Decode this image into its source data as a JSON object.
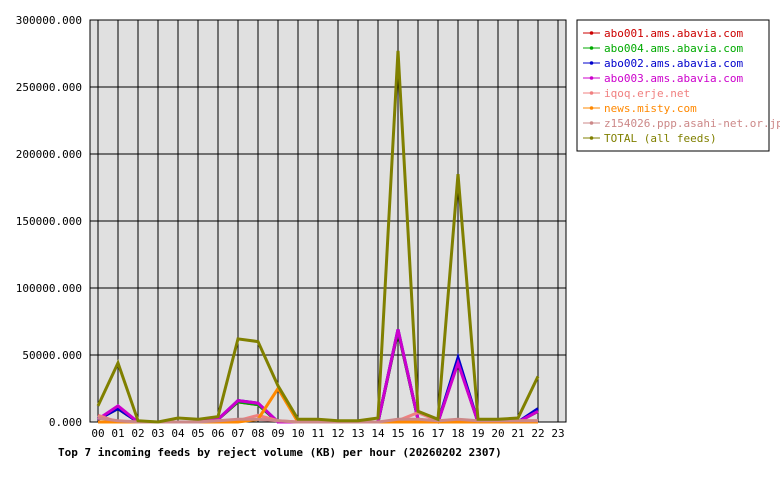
{
  "chart_data": {
    "type": "line",
    "title": "Top 7 incoming feeds by reject volume (KB) per hour (20260202 2307)",
    "xlabel": "",
    "ylabel": "",
    "x": [
      "00",
      "01",
      "02",
      "03",
      "04",
      "05",
      "06",
      "07",
      "08",
      "09",
      "10",
      "11",
      "12",
      "13",
      "14",
      "15",
      "16",
      "17",
      "18",
      "19",
      "20",
      "21",
      "22",
      "23"
    ],
    "y_ticks": [
      "0.000",
      "50000.000",
      "100000.000",
      "150000.000",
      "200000.000",
      "250000.000",
      "300000.000"
    ],
    "ylim": [
      0,
      300000
    ],
    "grid": true,
    "legend_position": "right",
    "series": [
      {
        "name": "abo001.ams.abavia.com",
        "color": "#cc0000",
        "values": [
          2000,
          10000,
          0,
          0,
          0,
          0,
          2000,
          15000,
          13000,
          0,
          0,
          0,
          0,
          0,
          0,
          68000,
          2000,
          0,
          45000,
          0,
          0,
          0,
          8000,
          null
        ]
      },
      {
        "name": "abo004.ams.abavia.com",
        "color": "#00aa00",
        "values": [
          2000,
          10000,
          0,
          0,
          0,
          0,
          2000,
          15000,
          13000,
          0,
          0,
          0,
          0,
          0,
          0,
          68000,
          2000,
          0,
          45000,
          0,
          0,
          0,
          8000,
          null
        ]
      },
      {
        "name": "abo002.ams.abavia.com",
        "color": "#0000cc",
        "values": [
          2000,
          10000,
          0,
          0,
          0,
          0,
          2000,
          16000,
          14000,
          0,
          0,
          0,
          0,
          0,
          0,
          69000,
          2000,
          0,
          48000,
          0,
          0,
          0,
          10000,
          null
        ]
      },
      {
        "name": "abo003.ams.abavia.com",
        "color": "#cc00cc",
        "values": [
          2000,
          12000,
          0,
          0,
          0,
          0,
          2000,
          16000,
          14000,
          0,
          0,
          0,
          0,
          0,
          0,
          69000,
          2000,
          0,
          44000,
          0,
          0,
          0,
          8000,
          null
        ]
      },
      {
        "name": "iqoq.erje.net",
        "color": "#f08080",
        "values": [
          5000,
          0,
          0,
          0,
          0,
          0,
          1000,
          1000,
          5000,
          1000,
          0,
          0,
          0,
          0,
          0,
          1000,
          7000,
          1000,
          1000,
          1000,
          1000,
          1000,
          1000,
          null
        ]
      },
      {
        "name": "news.misty.com",
        "color": "#ff8800",
        "values": [
          0,
          0,
          0,
          0,
          0,
          0,
          0,
          0,
          2000,
          25000,
          0,
          0,
          0,
          0,
          0,
          0,
          0,
          0,
          0,
          0,
          0,
          0,
          0,
          null
        ]
      },
      {
        "name": "z154026.ppp.asahi-net.or.jp",
        "color": "#cc8888",
        "values": [
          3000,
          1000,
          0,
          0,
          0,
          0,
          1000,
          2000,
          2000,
          1000,
          0,
          0,
          0,
          0,
          0,
          2000,
          2000,
          1000,
          2000,
          1000,
          1000,
          1000,
          1000,
          null
        ]
      },
      {
        "name": "TOTAL (all feeds)",
        "color": "#808000",
        "values": [
          12000,
          44000,
          1000,
          0,
          3000,
          2000,
          4000,
          62000,
          60000,
          27000,
          2000,
          2000,
          1000,
          1000,
          3000,
          277000,
          8000,
          2000,
          185000,
          2000,
          2000,
          3000,
          34000,
          null
        ]
      }
    ]
  }
}
